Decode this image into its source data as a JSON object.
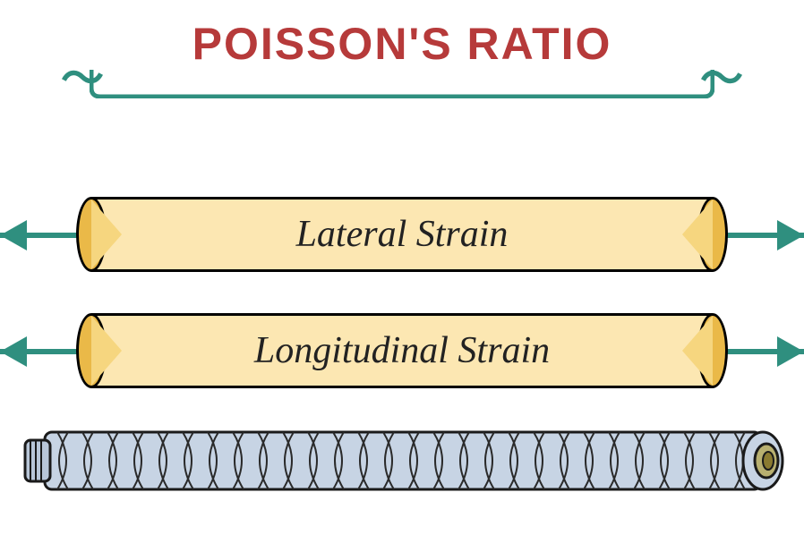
{
  "title": {
    "text": "POISSON'S RATIO",
    "color": "#b63a3a",
    "fontsize": 50,
    "squiggle_color": "#2f8f7f",
    "bracket_color": "#2f8f7f"
  },
  "arrows": {
    "color": "#2f8f7f"
  },
  "lateral": {
    "label": "Lateral Strain",
    "label_color": "#222222",
    "fill": "#fce7b2",
    "cap_fill": "#eab948",
    "tri_fill": "#f6d67f"
  },
  "longitudinal": {
    "label": "Longitudinal Strain",
    "label_color": "#222222",
    "fill": "#fce7b2",
    "cap_fill": "#eab948",
    "tri_fill": "#f6d67f"
  },
  "braided": {
    "body_fill": "#c7d4e4",
    "body_stroke": "#1a1a1a",
    "hatch_stroke": "#2a2a2a",
    "endcap_outer": "#b8b070",
    "endcap_inner": "#8a7a30",
    "leftcap_fill": "#b8c6d8"
  },
  "background": "#ffffff"
}
